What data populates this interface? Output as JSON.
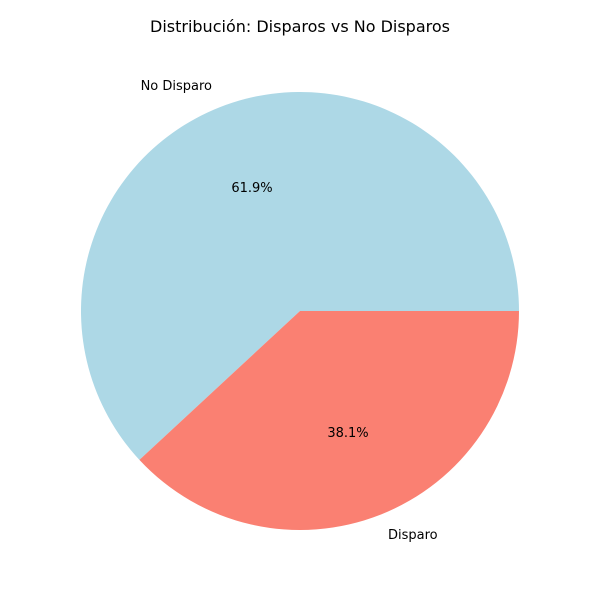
{
  "chart_data": {
    "type": "pie",
    "title": "Distribución: Disparos vs No Disparos",
    "labels": [
      "No Disparo",
      "Disparo"
    ],
    "values": [
      61.9,
      38.1
    ],
    "percent_labels": [
      "61.9%",
      "38.1%"
    ],
    "colors": [
      "#add8e6",
      "#fa8072"
    ],
    "start_angle_deg": 0,
    "direction": "counterclockwise",
    "legend": "none"
  }
}
